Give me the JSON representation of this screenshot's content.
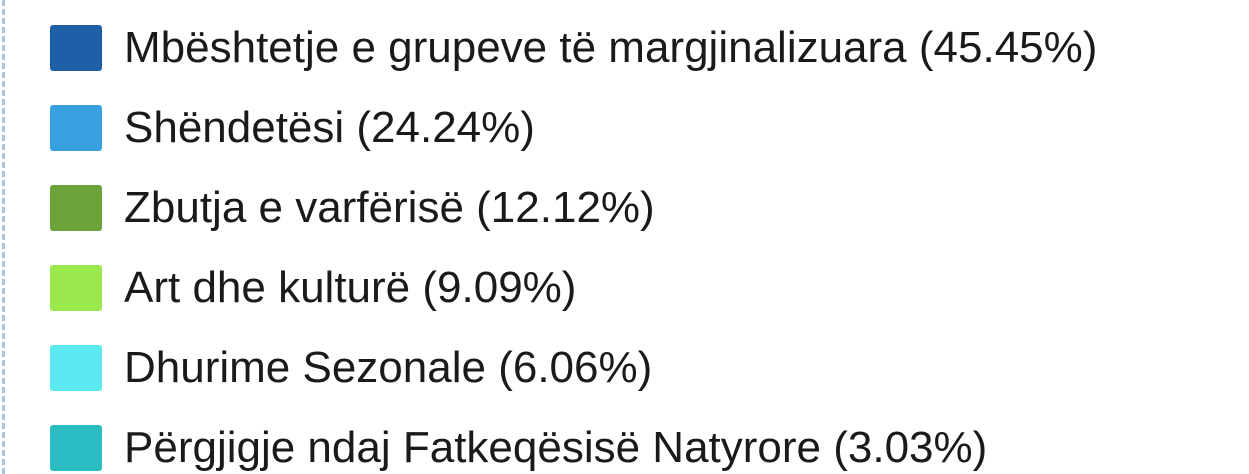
{
  "legend": {
    "items": [
      {
        "label": "Mbështetje e grupeve të margjinalizuara (45.45%)",
        "color": "#1f5fa8"
      },
      {
        "label": "Shëndetësi (24.24%)",
        "color": "#3a9fe0"
      },
      {
        "label": "Zbutja e varfërisë (12.12%)",
        "color": "#6ea23a"
      },
      {
        "label": "Art dhe kulturë (9.09%)",
        "color": "#9be84c"
      },
      {
        "label": "Dhurime Sezonale (6.06%)",
        "color": "#5be8f0"
      },
      {
        "label": "Përgjigje ndaj Fatkeqësisë Natyrore (3.03%)",
        "color": "#2bbcc4"
      }
    ]
  }
}
